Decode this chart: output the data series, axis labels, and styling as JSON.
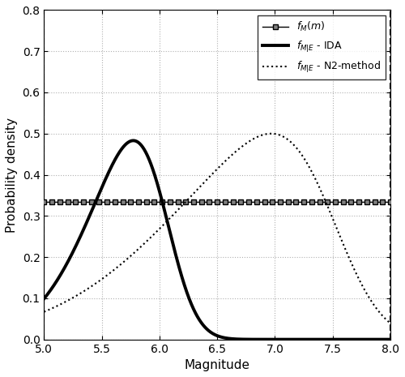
{
  "xlim": [
    5.0,
    8.0
  ],
  "ylim": [
    0.0,
    0.8
  ],
  "xlabel": "Magnitude",
  "ylabel": "Probability density",
  "xticks": [
    5.0,
    5.5,
    6.0,
    6.5,
    7.0,
    7.5,
    8.0
  ],
  "yticks": [
    0.0,
    0.1,
    0.2,
    0.3,
    0.4,
    0.5,
    0.6,
    0.7,
    0.8
  ],
  "uniform_value": 0.3333333,
  "uniform_color": "black",
  "uniform_linewidth": 1.0,
  "uniform_marker": "s",
  "uniform_markersize": 4,
  "uniform_marker_count": 45,
  "ida_color": "black",
  "ida_linewidth": 2.8,
  "ida_mu": 6.05,
  "ida_sigma": 0.55,
  "ida_skew_alpha": -2.5,
  "n2_color": "black",
  "n2_linewidth": 1.5,
  "n2_mu": 7.5,
  "n2_sigma": 1.2,
  "n2_skew_alpha": -3.5,
  "vline_x": [
    5.0,
    8.0
  ],
  "vline_color": "black",
  "vline_ls": "--",
  "vline_lw": 1.5,
  "grid_color": "#b0b0b0",
  "grid_ls": ":",
  "grid_lw": 0.8,
  "bg_color": "white",
  "legend_labels": [
    "$f_M(m)$",
    "$f_{M|E}$ - IDA",
    "$f_{M|E}$ - N2-method"
  ],
  "figsize": [
    5.0,
    4.65
  ],
  "dpi": 100
}
